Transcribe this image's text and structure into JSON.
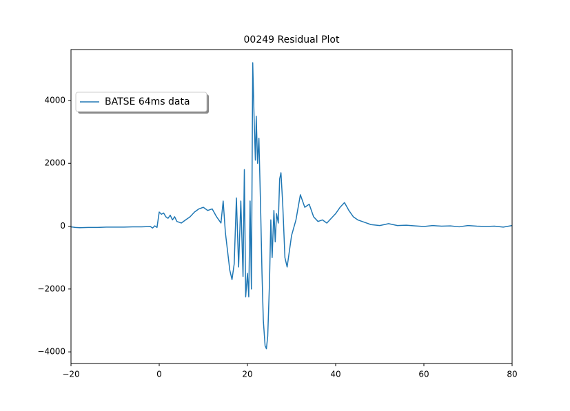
{
  "chart_data": {
    "type": "line",
    "title": "00249 Residual Plot",
    "x": [
      -20,
      -19,
      -18,
      -16,
      -14,
      -12,
      -10,
      -8,
      -6,
      -4,
      -2,
      -1.5,
      -1,
      -0.5,
      0,
      0.5,
      1,
      1.5,
      2,
      2.5,
      3,
      3.5,
      4,
      5,
      6,
      7,
      8,
      9,
      10,
      11,
      12,
      13,
      14,
      14.5,
      15,
      15.5,
      16,
      16.5,
      17,
      17.5,
      18,
      18.5,
      19,
      19.3,
      19.6,
      20,
      20.3,
      20.6,
      20.9,
      21.2,
      21.5,
      21.8,
      22,
      22.3,
      22.6,
      23,
      23.3,
      23.6,
      24,
      24.3,
      24.6,
      25,
      25.3,
      25.6,
      26,
      26.3,
      26.6,
      27,
      27.3,
      27.6,
      28,
      28.5,
      29,
      29.5,
      30,
      31,
      32,
      33,
      34,
      35,
      36,
      37,
      38,
      39,
      40,
      41,
      42,
      43,
      44,
      45,
      46,
      47,
      48,
      50,
      52,
      54,
      56,
      58,
      60,
      62,
      64,
      66,
      68,
      70,
      72,
      74,
      76,
      78,
      80
    ],
    "series": [
      {
        "name": "BATSE 64ms data",
        "color": "#1f77b4",
        "values": [
          -20,
          -40,
          -50,
          -40,
          -40,
          -30,
          -30,
          -30,
          -20,
          -20,
          -10,
          -60,
          10,
          -40,
          450,
          380,
          420,
          300,
          250,
          350,
          200,
          300,
          150,
          100,
          200,
          300,
          450,
          550,
          600,
          500,
          550,
          300,
          100,
          800,
          -200,
          -800,
          -1400,
          -1700,
          -1200,
          900,
          -1300,
          800,
          -1600,
          1800,
          -2250,
          -1500,
          -2250,
          800,
          -2000,
          5200,
          3500,
          2100,
          3500,
          2000,
          2800,
          500,
          -1500,
          -3000,
          -3800,
          -3900,
          -3500,
          -1800,
          200,
          -1000,
          500,
          -500,
          400,
          100,
          1500,
          1700,
          700,
          -1000,
          -1300,
          -800,
          -300,
          200,
          1000,
          600,
          700,
          300,
          150,
          200,
          100,
          250,
          400,
          600,
          750,
          500,
          300,
          200,
          150,
          100,
          50,
          20,
          80,
          20,
          30,
          10,
          -10,
          20,
          0,
          10,
          -20,
          20,
          0,
          -10,
          0,
          -30,
          20
        ]
      }
    ],
    "xlim": [
      -20,
      80
    ],
    "xticks": [
      {
        "value": -20,
        "label": "−20"
      },
      0,
      20,
      40,
      60,
      80
    ],
    "ylim": [
      -4370,
      5620
    ],
    "yticks": [
      {
        "value": -4000,
        "label": "−4000"
      },
      {
        "value": -2000,
        "label": "−2000"
      },
      0,
      2000,
      4000
    ],
    "legend": "upper left"
  }
}
